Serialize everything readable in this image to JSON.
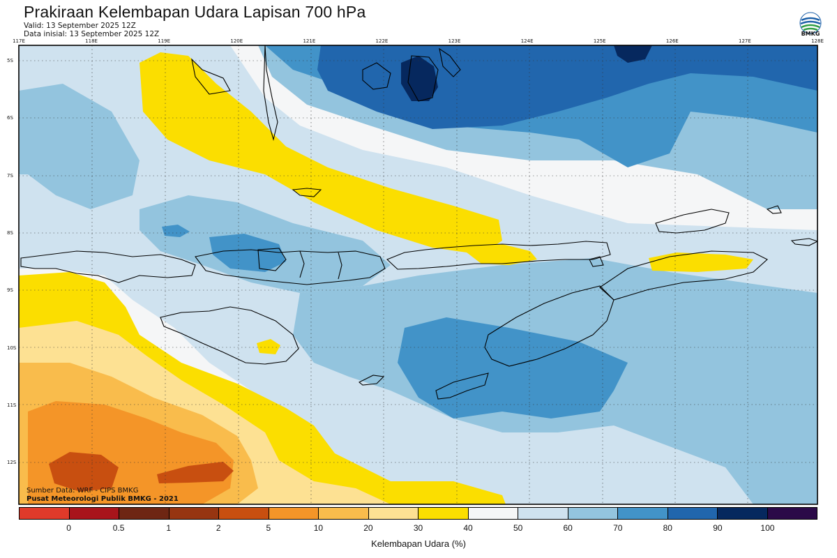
{
  "title": "Prakiraan Kelembapan Udara Lapisan 700 hPa",
  "valid": "Valid: 13 September 2025 12Z",
  "init": "Data inisial: 13 September 2025 12Z",
  "logo_text": "BMKG",
  "credit_source": "Sumber Data: WRF - CIPS BMKG",
  "credit_org": "Pusat Meteorologi Publik BMKG - 2021",
  "lon_labels": [
    "117E",
    "118E",
    "119E",
    "120E",
    "121E",
    "122E",
    "123E",
    "124E",
    "125E",
    "126E",
    "127E",
    "128E"
  ],
  "lat_labels": [
    "5S",
    "6S",
    "7S",
    "8S",
    "9S",
    "10S",
    "11S",
    "12S"
  ],
  "colorbar": {
    "title": "Kelembapan Udara (%)",
    "ticks": [
      "0",
      "0.5",
      "1",
      "2",
      "5",
      "10",
      "20",
      "30",
      "40",
      "50",
      "60",
      "70",
      "80",
      "90",
      "100"
    ],
    "colors": [
      "#e03a2a",
      "#a8141b",
      "#6e2613",
      "#973511",
      "#c84f10",
      "#f49528",
      "#f9bc4c",
      "#fde193",
      "#fbde00",
      "#f5f6f7",
      "#cfe2ef",
      "#93c4de",
      "#4293c8",
      "#2166ad",
      "#06285e",
      "#2b0a48"
    ]
  }
}
